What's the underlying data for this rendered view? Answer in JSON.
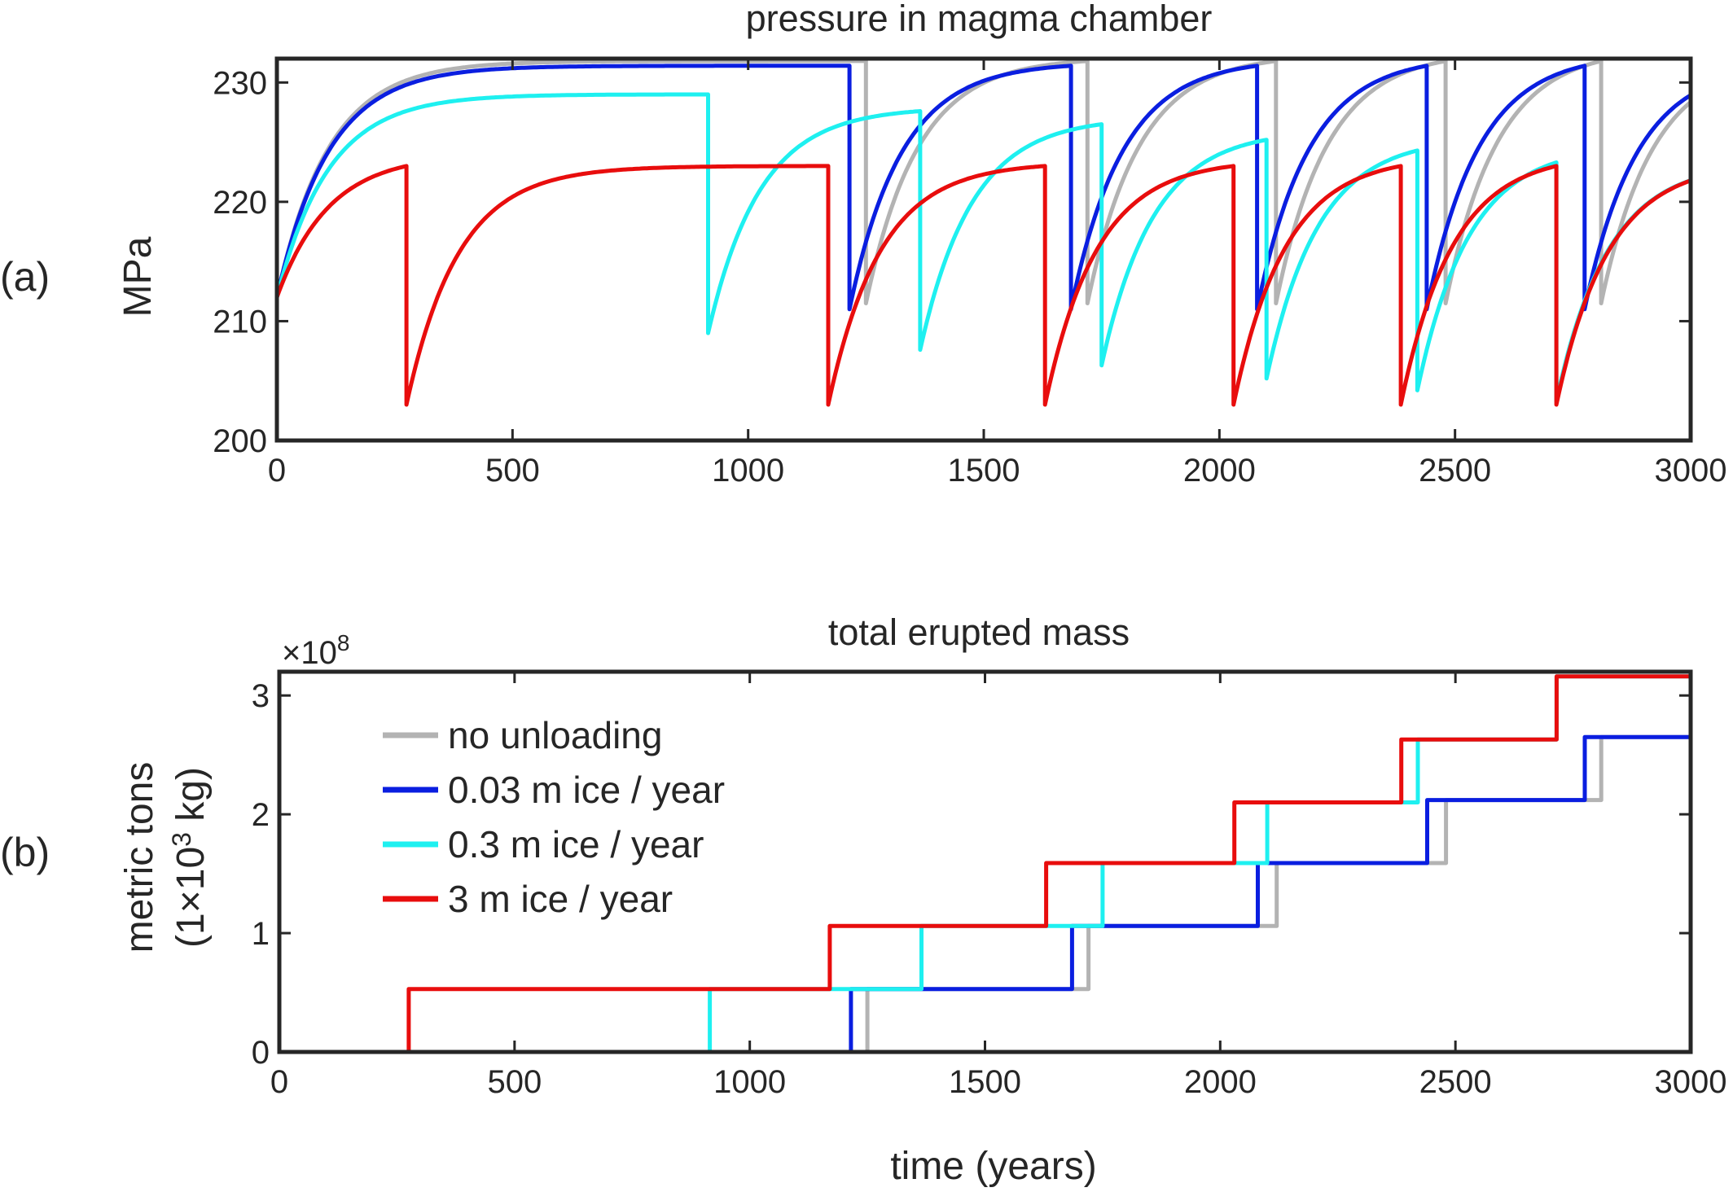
{
  "chart_data": [
    {
      "id": "a",
      "type": "line",
      "panel_label": "(a)",
      "title": "pressure in magma chamber",
      "xlabel": "",
      "ylabel": "MPa",
      "xlim": [
        0,
        3000
      ],
      "ylim": [
        200,
        232
      ],
      "xticks": [
        "0",
        "500",
        "1000",
        "1500",
        "2000",
        "2500",
        "3000"
      ],
      "yticks": [
        "200",
        "210",
        "220",
        "230"
      ],
      "xtick_values": [
        0,
        500,
        1000,
        1500,
        2000,
        2500,
        3000
      ],
      "ytick_values": [
        200,
        210,
        220,
        230
      ],
      "model": {
        "start_pressure": 212,
        "recovery_timescale": 110,
        "series": [
          {
            "name": "no unloading",
            "color": "#b3b3b3",
            "eruptions": [
              1250,
              1720,
              2120,
              2480,
              2810
            ],
            "peak": 231.8,
            "post_drop": 211.5,
            "asymptote": 232.0
          },
          {
            "name": "0.03 m ice / year",
            "color": "#0a1ee0",
            "eruptions": [
              1215,
              1685,
              2080,
              2440,
              2775
            ],
            "peak": 231.4,
            "post_drop": 211.0,
            "asymptote": 231.6
          },
          {
            "name": "0.3 m ice / year",
            "color": "#1ef0f0",
            "eruptions": [
              915,
              1365,
              1750,
              2100,
              2420,
              2715
            ],
            "peak_values": [
              229.0,
              227.6,
              226.5,
              225.2,
              224.3,
              223.3
            ],
            "post_drop_values": [
              209.0,
              207.6,
              206.3,
              205.2,
              204.2,
              203.3
            ],
            "asymptote": 229.3
          },
          {
            "name": "3 m ice / year",
            "color": "#e80d0d",
            "eruptions": [
              275,
              1170,
              1630,
              2030,
              2385,
              2715
            ],
            "peak": 223.0,
            "post_drop": 203.0,
            "asymptote": 223.3
          }
        ]
      }
    },
    {
      "id": "b",
      "type": "line",
      "panel_label": "(b)",
      "title": "total erupted mass",
      "xlabel": "time (years)",
      "ylabel_line1": "metric tons",
      "ylabel_line2_pre": "(1×10",
      "ylabel_line2_sup": "3",
      "ylabel_line2_post": " kg)",
      "exponent_label_pre": "×10",
      "exponent_label_sup": "8",
      "xlim": [
        0,
        3000
      ],
      "ylim": [
        0,
        3.2
      ],
      "xticks": [
        "0",
        "500",
        "1000",
        "1500",
        "2000",
        "2500",
        "3000"
      ],
      "yticks": [
        "0",
        "1",
        "2",
        "3"
      ],
      "xtick_values": [
        0,
        500,
        1000,
        1500,
        2000,
        2500,
        3000
      ],
      "ytick_values": [
        0,
        1,
        2,
        3
      ],
      "legend_position": "upper-left",
      "series": [
        {
          "name": "no unloading",
          "color": "#b3b3b3",
          "steps_x": [
            1250,
            1720,
            2120,
            2480,
            2810
          ],
          "steps_y": [
            0.53,
            1.06,
            1.59,
            2.12,
            2.65
          ]
        },
        {
          "name": "0.03 m ice / year",
          "color": "#0a1ee0",
          "steps_x": [
            1215,
            1685,
            2080,
            2440,
            2775
          ],
          "steps_y": [
            0.53,
            1.06,
            1.59,
            2.12,
            2.65
          ]
        },
        {
          "name": "0.3 m ice / year",
          "color": "#1ef0f0",
          "steps_x": [
            915,
            1365,
            1750,
            2100,
            2420,
            2715
          ],
          "steps_y": [
            0.53,
            1.06,
            1.59,
            2.1,
            2.63,
            3.16
          ]
        },
        {
          "name": "3 m ice / year",
          "color": "#e80d0d",
          "steps_x": [
            275,
            1170,
            1630,
            2030,
            2385,
            2715
          ],
          "steps_y": [
            0.53,
            1.06,
            1.59,
            2.1,
            2.63,
            3.16
          ]
        }
      ]
    }
  ]
}
